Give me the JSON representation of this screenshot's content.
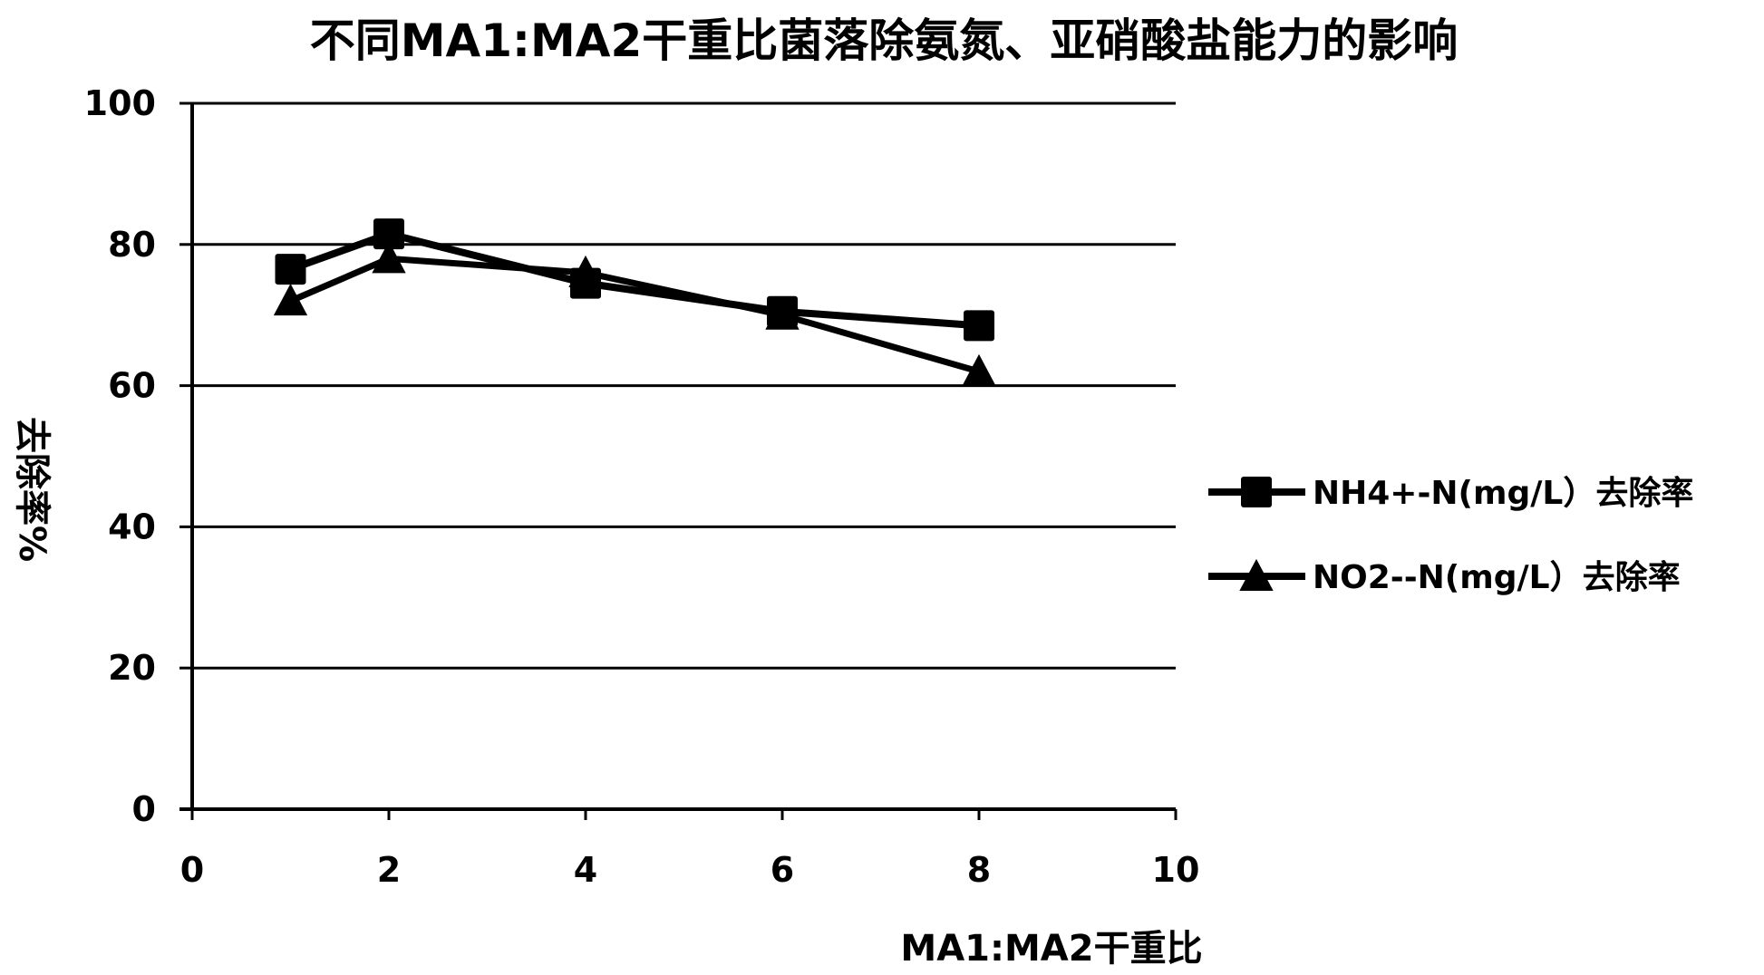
{
  "chart_data": {
    "type": "line",
    "title": "不同MA1:MA2干重比菌落除氨氮、亚硝酸盐能力的影响",
    "xlabel": "MA1:MA2干重比",
    "ylabel": "去除率%",
    "xlim": [
      0,
      10
    ],
    "ylim": [
      0,
      100
    ],
    "x_ticks": [
      "0",
      "2",
      "4",
      "6",
      "8",
      "10"
    ],
    "y_ticks": [
      "0",
      "20",
      "40",
      "60",
      "80",
      "100"
    ],
    "grid": "horizontal",
    "legend_position": "right",
    "series": [
      {
        "name": "NH4+-N(mg/L）去除率",
        "marker": "square",
        "color": "#000000",
        "x": [
          1,
          2,
          4,
          6,
          8
        ],
        "y": [
          76.5,
          81.5,
          74.5,
          70.5,
          68.5
        ]
      },
      {
        "name": "NO2--N(mg/L）去除率",
        "marker": "triangle",
        "color": "#000000",
        "x": [
          1,
          2,
          4,
          6,
          8
        ],
        "y": [
          72,
          78,
          76,
          70,
          62
        ]
      }
    ]
  }
}
